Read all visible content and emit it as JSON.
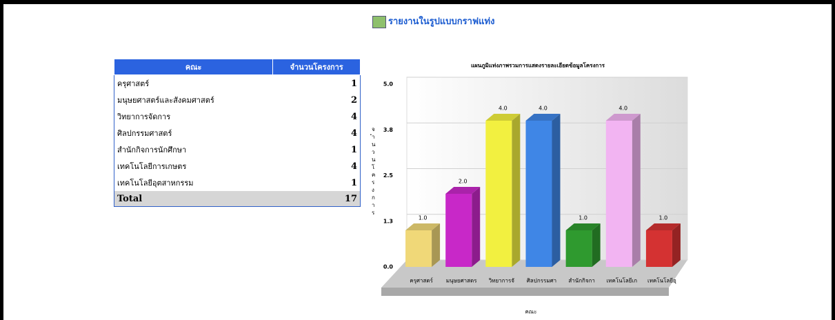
{
  "page_title": "รายงานในรูปแบบกราฟแท่ง",
  "table": {
    "header": [
      "คณะ",
      "จำนวนโครงการ"
    ],
    "rows": [
      [
        "ครุศาสตร์",
        1
      ],
      [
        "มนุษยศาสตร์และสังคมศาสตร์",
        2
      ],
      [
        "วิทยาการจัดการ",
        4
      ],
      [
        "ศิลปกรรมศาสตร์",
        4
      ],
      [
        "สำนักกิจการนักศึกษา",
        1
      ],
      [
        "เทคโนโลยีการเกษตร",
        4
      ],
      [
        "เทคโนโลยีอุตสาหกรรม",
        1
      ]
    ],
    "total": [
      "Total",
      17
    ]
  },
  "chart_data": {
    "type": "bar",
    "title": "แผนภูมิแท่งภาพรวมการแสดงรายละเอียดข้อมูลโครงการ",
    "x_label": "คณะ",
    "y_label": "จำนวนโครงการ",
    "categories": [
      "ครุศาสตร์",
      "มนุษยศาสตร",
      "วิทยาการจั",
      "ศิลปกรรมศา",
      "สำนักกิจกา",
      "เทคโนโลยีเก",
      "เทคโนโลยีอุ"
    ],
    "values": [
      1,
      2,
      4,
      4,
      1,
      4,
      1
    ],
    "value_labels": [
      "1.0",
      "2.0",
      "4.0",
      "4.0",
      "1.0",
      "4.0",
      "1.0"
    ],
    "colors": [
      "#f0d878",
      "#c828c8",
      "#f2f040",
      "#3f86e6",
      "#2f9a2f",
      "#f2b4f2",
      "#d43232"
    ],
    "ylim": [
      0,
      5
    ],
    "yticks": [
      {
        "value": 0,
        "label": "0.0"
      },
      {
        "value": 1.25,
        "label": "1.3"
      },
      {
        "value": 2.5,
        "label": "2.5"
      },
      {
        "value": 3.75,
        "label": "3.8"
      },
      {
        "value": 5,
        "label": "5.0"
      }
    ],
    "grid": true
  }
}
